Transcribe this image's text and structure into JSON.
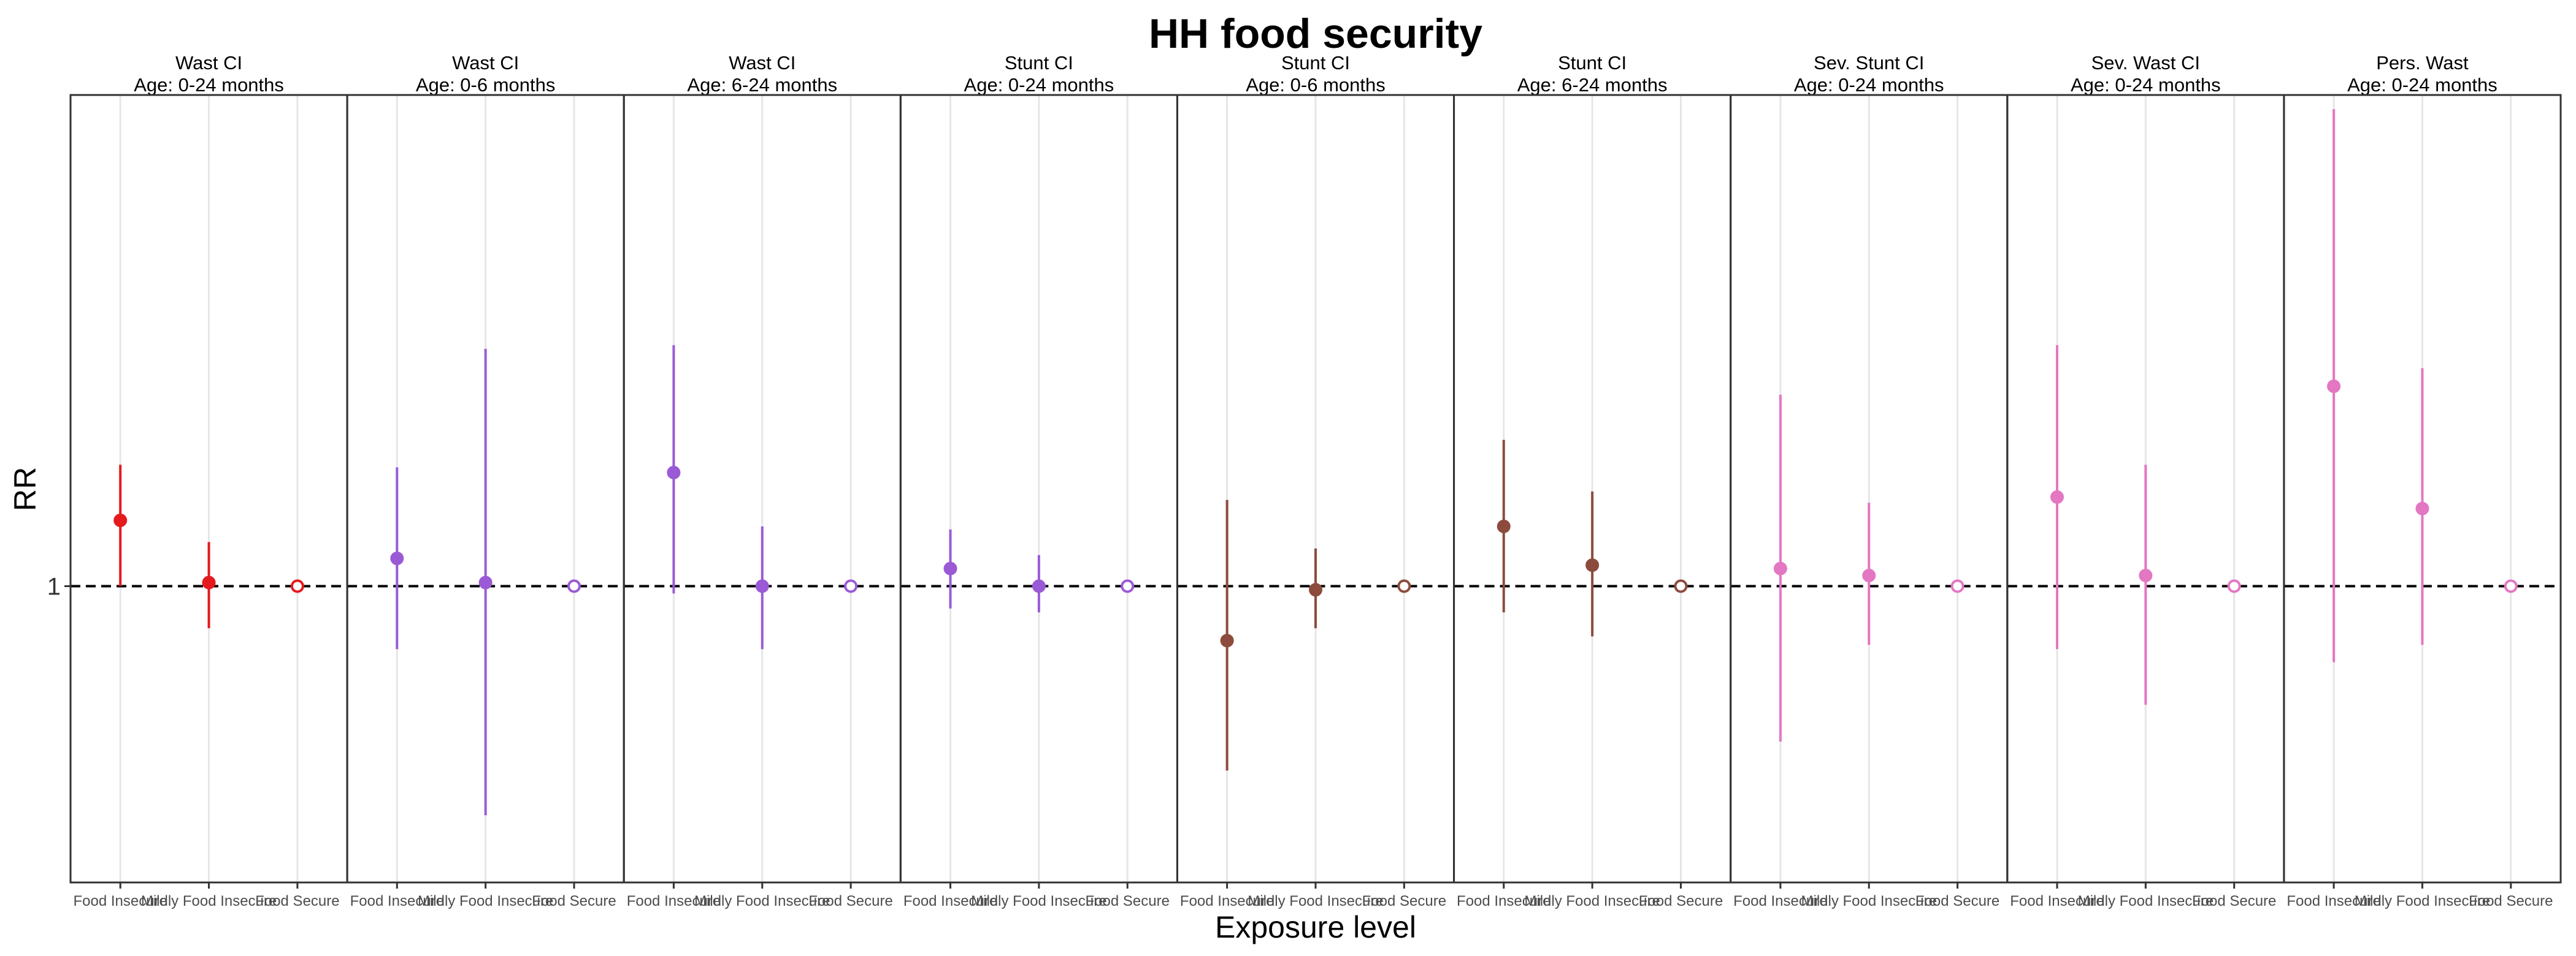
{
  "chart_data": {
    "type": "scatter",
    "title": "HH food security",
    "xlabel": "Exposure level",
    "ylabel": "RR",
    "y_scale": "log",
    "y_ticks": [
      1
    ],
    "y_tick_labels": [
      "1"
    ],
    "ylim": [
      0.44,
      3.9
    ],
    "reference_line": 1,
    "grid": true,
    "legend": "none",
    "categories": [
      "Food Insecure",
      "Mildly Food Insecure",
      "Food Secure"
    ],
    "panels": [
      {
        "outcome": "Wast CI",
        "age": "Age: 0-24 months",
        "color": "#E41A1C",
        "points": [
          {
            "x": "Food Insecure",
            "rr": 1.2,
            "lower": 1.0,
            "upper": 1.4,
            "reference": false
          },
          {
            "x": "Mildly Food Insecure",
            "rr": 1.01,
            "lower": 0.89,
            "upper": 1.13,
            "reference": false
          },
          {
            "x": "Food Secure",
            "rr": 1.0,
            "lower": 1.0,
            "upper": 1.0,
            "reference": true
          }
        ]
      },
      {
        "outcome": "Wast CI",
        "age": "Age: 0-6 months",
        "color": "#9A5AD5",
        "points": [
          {
            "x": "Food Insecure",
            "rr": 1.08,
            "lower": 0.84,
            "upper": 1.39,
            "reference": false
          },
          {
            "x": "Mildly Food Insecure",
            "rr": 1.01,
            "lower": 0.53,
            "upper": 1.93,
            "reference": false
          },
          {
            "x": "Food Secure",
            "rr": 1.0,
            "lower": 1.0,
            "upper": 1.0,
            "reference": true
          }
        ]
      },
      {
        "outcome": "Wast CI",
        "age": "Age: 6-24 months",
        "color": "#9A5AD5",
        "points": [
          {
            "x": "Food Insecure",
            "rr": 1.37,
            "lower": 0.98,
            "upper": 1.95,
            "reference": false
          },
          {
            "x": "Mildly Food Insecure",
            "rr": 1.0,
            "lower": 0.84,
            "upper": 1.18,
            "reference": false
          },
          {
            "x": "Food Secure",
            "rr": 1.0,
            "lower": 1.0,
            "upper": 1.0,
            "reference": true
          }
        ]
      },
      {
        "outcome": "Stunt CI",
        "age": "Age: 0-24 months",
        "color": "#9A5AD5",
        "points": [
          {
            "x": "Food Insecure",
            "rr": 1.05,
            "lower": 0.94,
            "upper": 1.17,
            "reference": false
          },
          {
            "x": "Mildly Food Insecure",
            "rr": 1.0,
            "lower": 0.93,
            "upper": 1.09,
            "reference": false
          },
          {
            "x": "Food Secure",
            "rr": 1.0,
            "lower": 1.0,
            "upper": 1.0,
            "reference": true
          }
        ]
      },
      {
        "outcome": "Stunt CI",
        "age": "Age: 0-6 months",
        "color": "#8C4B3C",
        "points": [
          {
            "x": "Food Insecure",
            "rr": 0.86,
            "lower": 0.6,
            "upper": 1.27,
            "reference": false
          },
          {
            "x": "Mildly Food Insecure",
            "rr": 0.99,
            "lower": 0.89,
            "upper": 1.11,
            "reference": false
          },
          {
            "x": "Food Secure",
            "rr": 1.0,
            "lower": 1.0,
            "upper": 1.0,
            "reference": true
          }
        ]
      },
      {
        "outcome": "Stunt CI",
        "age": "Age: 6-24 months",
        "color": "#8C4B3C",
        "points": [
          {
            "x": "Food Insecure",
            "rr": 1.18,
            "lower": 0.93,
            "upper": 1.5,
            "reference": false
          },
          {
            "x": "Mildly Food Insecure",
            "rr": 1.06,
            "lower": 0.87,
            "upper": 1.3,
            "reference": false
          },
          {
            "x": "Food Secure",
            "rr": 1.0,
            "lower": 1.0,
            "upper": 1.0,
            "reference": true
          }
        ]
      },
      {
        "outcome": "Sev. Stunt CI",
        "age": "Age: 0-24 months",
        "color": "#E377C2",
        "points": [
          {
            "x": "Food Insecure",
            "rr": 1.05,
            "lower": 0.65,
            "upper": 1.7,
            "reference": false
          },
          {
            "x": "Mildly Food Insecure",
            "rr": 1.03,
            "lower": 0.85,
            "upper": 1.26,
            "reference": false
          },
          {
            "x": "Food Secure",
            "rr": 1.0,
            "lower": 1.0,
            "upper": 1.0,
            "reference": true
          }
        ]
      },
      {
        "outcome": "Sev. Wast CI",
        "age": "Age: 0-24 months",
        "color": "#E377C2",
        "points": [
          {
            "x": "Food Insecure",
            "rr": 1.28,
            "lower": 0.84,
            "upper": 1.95,
            "reference": false
          },
          {
            "x": "Mildly Food Insecure",
            "rr": 1.03,
            "lower": 0.72,
            "upper": 1.4,
            "reference": false
          },
          {
            "x": "Food Secure",
            "rr": 1.0,
            "lower": 1.0,
            "upper": 1.0,
            "reference": true
          }
        ]
      },
      {
        "outcome": "Pers. Wast",
        "age": "Age: 0-24 months",
        "color": "#E377C2",
        "points": [
          {
            "x": "Food Insecure",
            "rr": 1.74,
            "lower": 0.81,
            "upper": 3.75,
            "reference": false
          },
          {
            "x": "Mildly Food Insecure",
            "rr": 1.24,
            "lower": 0.85,
            "upper": 1.83,
            "reference": false
          },
          {
            "x": "Food Secure",
            "rr": 1.0,
            "lower": 1.0,
            "upper": 1.0,
            "reference": true
          }
        ]
      }
    ]
  }
}
